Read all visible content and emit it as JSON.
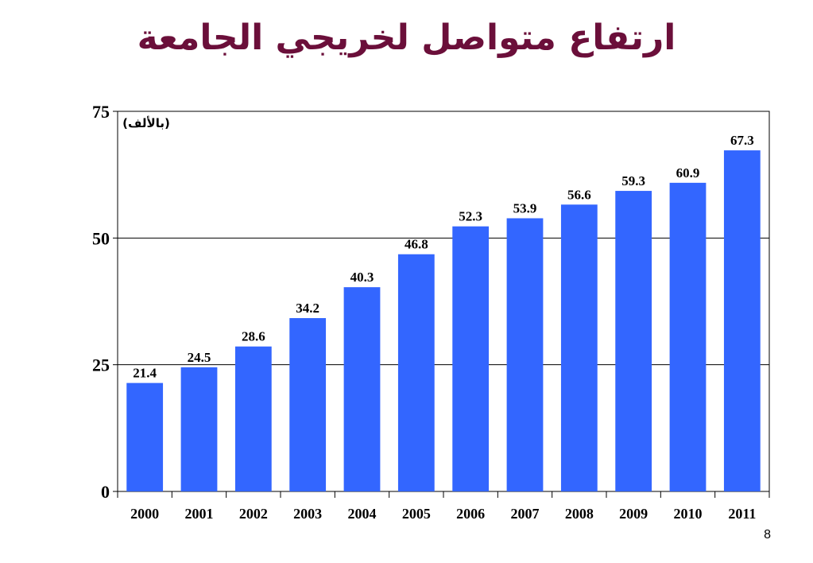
{
  "slide": {
    "title": "ارتفاع متواصل لخريجي الجامعة",
    "page_number": "8"
  },
  "chart_data": {
    "type": "bar",
    "title": "ارتفاع متواصل لخريجي الجامعة",
    "unit_note": "(بالألف)",
    "categories": [
      "2000",
      "2001",
      "2002",
      "2003",
      "2004",
      "2005",
      "2006",
      "2007",
      "2008",
      "2009",
      "2010",
      "2011"
    ],
    "values": [
      21.4,
      24.5,
      28.6,
      34.2,
      40.3,
      46.8,
      52.3,
      53.9,
      56.6,
      59.3,
      60.9,
      67.3
    ],
    "data_labels": [
      "21.4",
      "24.5",
      "28.6",
      "34.2",
      "40.3",
      "46.8",
      "52.3",
      "53.9",
      "56.6",
      "59.3",
      "60.9",
      "67.3"
    ],
    "ylim": [
      0,
      75
    ],
    "yticks": [
      0,
      25,
      50,
      75
    ],
    "ytick_labels": [
      "0",
      "25",
      "50",
      "75"
    ],
    "grid": true,
    "xlabel": "",
    "ylabel": "",
    "colors": {
      "bar": "#3366ff",
      "title": "#6b0f3a",
      "grid": "#000000"
    }
  }
}
